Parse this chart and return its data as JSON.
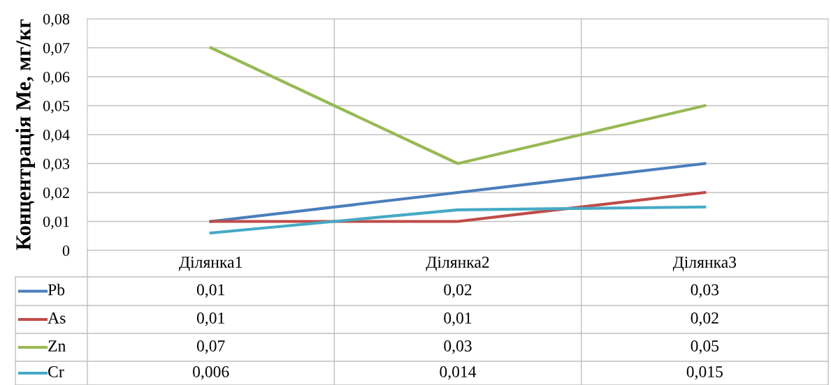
{
  "chart_data": {
    "type": "line",
    "ylabel": "Концентрація Ме, мг/кг",
    "categories": [
      "Ділянка1",
      "Ділянка2",
      "Ділянка3"
    ],
    "ylim": [
      0,
      0.08
    ],
    "yticks": [
      0,
      {
        "value": 0.01,
        "label": "0,01"
      },
      {
        "value": 0.02,
        "label": "0,02"
      },
      {
        "value": 0.03,
        "label": "0,03"
      },
      {
        "value": 0.04,
        "label": "0,04"
      },
      {
        "value": 0.05,
        "label": "0,05"
      },
      {
        "value": 0.06,
        "label": "0,06"
      },
      {
        "value": 0.07,
        "label": "0,07"
      },
      {
        "value": 0.08,
        "label": "0,08"
      }
    ],
    "grid": true,
    "legend": "bottom",
    "marker": "none",
    "line_style": "solid",
    "series": [
      {
        "name": "Pb",
        "color": "#4a7ebb",
        "values": [
          0.01,
          0.02,
          0.03
        ],
        "value_labels": [
          "0,01",
          "0,02",
          "0,03"
        ]
      },
      {
        "name": "As",
        "color": "#be4b48",
        "values": [
          0.01,
          0.01,
          0.02
        ],
        "value_labels": [
          "0,01",
          "0,01",
          "0,02"
        ]
      },
      {
        "name": "Zn",
        "color": "#98b954",
        "values": [
          0.07,
          0.03,
          0.05
        ],
        "value_labels": [
          "0,07",
          "0,03",
          "0,05"
        ]
      },
      {
        "name": "Cr",
        "color": "#46aac5",
        "values": [
          0.006,
          0.014,
          0.015
        ],
        "value_labels": [
          "0,006",
          "0,014",
          "0,015"
        ]
      }
    ]
  }
}
